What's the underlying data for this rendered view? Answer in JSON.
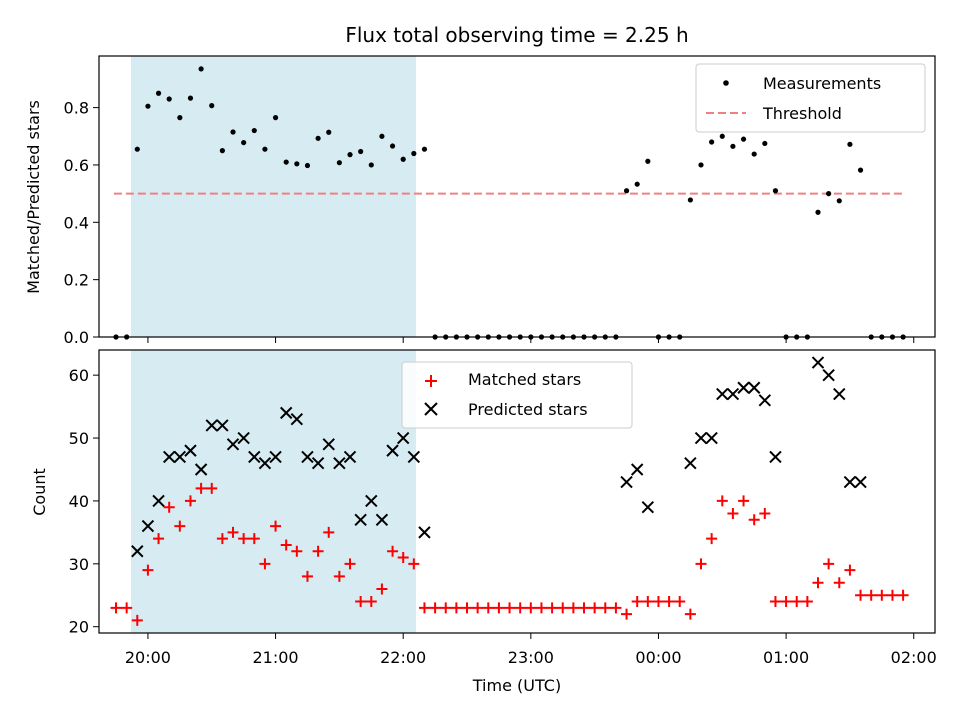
{
  "title": "Flux total observing time = 2.25 h",
  "xlabel": "Time (UTC)",
  "colors": {
    "measurements": "#000000",
    "threshold": "#f08080",
    "matched": "#ff0000",
    "predicted": "#000000",
    "shade": "#add8e6"
  },
  "chart_data": [
    {
      "type": "scatter",
      "ylabel": "Matched/Predicted stars",
      "xlim": [
        "19:37",
        "02:10"
      ],
      "ylim": [
        0,
        0.98
      ],
      "shaded_span": [
        "19:52",
        "22:06"
      ],
      "threshold": 0.5,
      "threshold_span": [
        "19:44",
        "01:56"
      ],
      "legend": {
        "placement": "upper-right",
        "entries": [
          "Measurements",
          "Threshold"
        ]
      },
      "yticks": [
        "0.0",
        "0.2",
        "0.4",
        "0.6",
        "0.8"
      ],
      "series": [
        {
          "name": "Measurements",
          "points": [
            [
              "19:45",
              0
            ],
            [
              "19:50",
              0
            ],
            [
              "19:55",
              0.655
            ],
            [
              "20:00",
              0.805
            ],
            [
              "20:05",
              0.85
            ],
            [
              "20:10",
              0.83
            ],
            [
              "20:15",
              0.765
            ],
            [
              "20:20",
              0.833
            ],
            [
              "20:25",
              0.935
            ],
            [
              "20:30",
              0.807
            ],
            [
              "20:35",
              0.65
            ],
            [
              "20:40",
              0.715
            ],
            [
              "20:45",
              0.678
            ],
            [
              "20:50",
              0.72
            ],
            [
              "20:55",
              0.655
            ],
            [
              "21:00",
              0.765
            ],
            [
              "21:05",
              0.61
            ],
            [
              "21:10",
              0.604
            ],
            [
              "21:15",
              0.598
            ],
            [
              "21:20",
              0.693
            ],
            [
              "21:25",
              0.714
            ],
            [
              "21:30",
              0.608
            ],
            [
              "21:35",
              0.636
            ],
            [
              "21:40",
              0.647
            ],
            [
              "21:45",
              0.6
            ],
            [
              "21:50",
              0.7
            ],
            [
              "21:55",
              0.666
            ],
            [
              "22:00",
              0.62
            ],
            [
              "22:05",
              0.64
            ],
            [
              "22:10",
              0.655
            ],
            [
              "22:15",
              0
            ],
            [
              "22:20",
              0
            ],
            [
              "22:25",
              0
            ],
            [
              "22:30",
              0
            ],
            [
              "22:35",
              0
            ],
            [
              "22:40",
              0
            ],
            [
              "22:45",
              0
            ],
            [
              "22:50",
              0
            ],
            [
              "22:55",
              0
            ],
            [
              "23:00",
              0
            ],
            [
              "23:05",
              0
            ],
            [
              "23:10",
              0
            ],
            [
              "23:15",
              0
            ],
            [
              "23:20",
              0
            ],
            [
              "23:25",
              0
            ],
            [
              "23:30",
              0
            ],
            [
              "23:35",
              0
            ],
            [
              "23:40",
              0
            ],
            [
              "23:45",
              0.51
            ],
            [
              "23:50",
              0.533
            ],
            [
              "23:55",
              0.613
            ],
            [
              "00:00",
              0
            ],
            [
              "00:05",
              0
            ],
            [
              "00:10",
              0
            ],
            [
              "00:15",
              0.478
            ],
            [
              "00:20",
              0.6
            ],
            [
              "00:25",
              0.68
            ],
            [
              "00:30",
              0.7
            ],
            [
              "00:35",
              0.665
            ],
            [
              "00:40",
              0.69
            ],
            [
              "00:45",
              0.638
            ],
            [
              "00:50",
              0.675
            ],
            [
              "00:55",
              0.51
            ],
            [
              "01:00",
              0
            ],
            [
              "01:05",
              0
            ],
            [
              "01:10",
              0
            ],
            [
              "01:15",
              0.435
            ],
            [
              "01:20",
              0.5
            ],
            [
              "01:25",
              0.475
            ],
            [
              "01:30",
              0.672
            ],
            [
              "01:35",
              0.582
            ],
            [
              "01:40",
              0
            ],
            [
              "01:45",
              0
            ],
            [
              "01:50",
              0
            ],
            [
              "01:55",
              0
            ]
          ]
        }
      ]
    },
    {
      "type": "scatter",
      "ylabel": "Count",
      "xlim": [
        "19:37",
        "02:10"
      ],
      "ylim": [
        19,
        64
      ],
      "shaded_span": [
        "19:52",
        "22:06"
      ],
      "legend": {
        "placement": "upper-center",
        "entries": [
          "Matched stars",
          "Predicted stars"
        ]
      },
      "yticks": [
        "20",
        "30",
        "40",
        "50",
        "60"
      ],
      "xticks": [
        "20:00",
        "21:00",
        "22:00",
        "23:00",
        "00:00",
        "01:00",
        "02:00"
      ],
      "series": [
        {
          "name": "Matched stars",
          "points": [
            [
              "19:45",
              23
            ],
            [
              "19:50",
              23
            ],
            [
              "19:55",
              21
            ],
            [
              "20:00",
              29
            ],
            [
              "20:05",
              34
            ],
            [
              "20:10",
              39
            ],
            [
              "20:15",
              36
            ],
            [
              "20:20",
              40
            ],
            [
              "20:25",
              42
            ],
            [
              "20:30",
              42
            ],
            [
              "20:35",
              34
            ],
            [
              "20:40",
              35
            ],
            [
              "20:45",
              34
            ],
            [
              "20:50",
              34
            ],
            [
              "20:55",
              30
            ],
            [
              "21:00",
              36
            ],
            [
              "21:05",
              33
            ],
            [
              "21:10",
              32
            ],
            [
              "21:15",
              28
            ],
            [
              "21:20",
              32
            ],
            [
              "21:25",
              35
            ],
            [
              "21:30",
              28
            ],
            [
              "21:35",
              30
            ],
            [
              "21:40",
              24
            ],
            [
              "21:45",
              24
            ],
            [
              "21:50",
              26
            ],
            [
              "21:55",
              32
            ],
            [
              "22:00",
              31
            ],
            [
              "22:05",
              30
            ],
            [
              "22:10",
              23
            ],
            [
              "22:15",
              23
            ],
            [
              "22:20",
              23
            ],
            [
              "22:25",
              23
            ],
            [
              "22:30",
              23
            ],
            [
              "22:35",
              23
            ],
            [
              "22:40",
              23
            ],
            [
              "22:45",
              23
            ],
            [
              "22:50",
              23
            ],
            [
              "22:55",
              23
            ],
            [
              "23:00",
              23
            ],
            [
              "23:05",
              23
            ],
            [
              "23:10",
              23
            ],
            [
              "23:15",
              23
            ],
            [
              "23:20",
              23
            ],
            [
              "23:25",
              23
            ],
            [
              "23:30",
              23
            ],
            [
              "23:35",
              23
            ],
            [
              "23:40",
              23
            ],
            [
              "23:45",
              22
            ],
            [
              "23:50",
              24
            ],
            [
              "23:55",
              24
            ],
            [
              "00:00",
              24
            ],
            [
              "00:05",
              24
            ],
            [
              "00:10",
              24
            ],
            [
              "00:15",
              22
            ],
            [
              "00:20",
              30
            ],
            [
              "00:25",
              34
            ],
            [
              "00:30",
              40
            ],
            [
              "00:35",
              38
            ],
            [
              "00:40",
              40
            ],
            [
              "00:45",
              37
            ],
            [
              "00:50",
              38
            ],
            [
              "00:55",
              24
            ],
            [
              "01:00",
              24
            ],
            [
              "01:05",
              24
            ],
            [
              "01:10",
              24
            ],
            [
              "01:15",
              27
            ],
            [
              "01:20",
              30
            ],
            [
              "01:25",
              27
            ],
            [
              "01:30",
              29
            ],
            [
              "01:35",
              25
            ],
            [
              "01:40",
              25
            ],
            [
              "01:45",
              25
            ],
            [
              "01:50",
              25
            ],
            [
              "01:55",
              25
            ]
          ]
        },
        {
          "name": "Predicted stars",
          "points": [
            [
              "19:55",
              32
            ],
            [
              "20:00",
              36
            ],
            [
              "20:05",
              40
            ],
            [
              "20:10",
              47
            ],
            [
              "20:15",
              47
            ],
            [
              "20:20",
              48
            ],
            [
              "20:25",
              45
            ],
            [
              "20:30",
              52
            ],
            [
              "20:35",
              52
            ],
            [
              "20:40",
              49
            ],
            [
              "20:45",
              50
            ],
            [
              "20:50",
              47
            ],
            [
              "20:55",
              46
            ],
            [
              "21:00",
              47
            ],
            [
              "21:05",
              54
            ],
            [
              "21:10",
              53
            ],
            [
              "21:15",
              47
            ],
            [
              "21:20",
              46
            ],
            [
              "21:25",
              49
            ],
            [
              "21:30",
              46
            ],
            [
              "21:35",
              47
            ],
            [
              "21:40",
              37
            ],
            [
              "21:45",
              40
            ],
            [
              "21:50",
              37
            ],
            [
              "21:55",
              48
            ],
            [
              "22:00",
              50
            ],
            [
              "22:05",
              47
            ],
            [
              "22:10",
              35
            ],
            [
              "23:45",
              43
            ],
            [
              "23:50",
              45
            ],
            [
              "23:55",
              39
            ],
            [
              "00:15",
              46
            ],
            [
              "00:20",
              50
            ],
            [
              "00:25",
              50
            ],
            [
              "00:30",
              57
            ],
            [
              "00:35",
              57
            ],
            [
              "00:40",
              58
            ],
            [
              "00:45",
              58
            ],
            [
              "00:50",
              56
            ],
            [
              "00:55",
              47
            ],
            [
              "01:15",
              62
            ],
            [
              "01:20",
              60
            ],
            [
              "01:25",
              57
            ],
            [
              "01:30",
              43
            ],
            [
              "01:35",
              43
            ]
          ]
        }
      ]
    }
  ]
}
